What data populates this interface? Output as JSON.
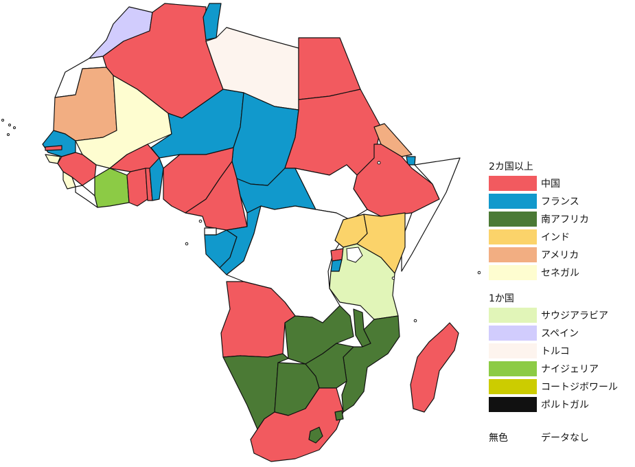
{
  "colors": {
    "china": "#f25a5f",
    "france": "#1199cc",
    "south_africa": "#4b7a35",
    "india": "#fbd36a",
    "usa": "#f2ae82",
    "senegal": "#fefdd0",
    "saudi": "#e1f5b8",
    "spain": "#d1ccfd",
    "turkey": "#fdf4ee",
    "nigeria": "#8ccb45",
    "cote": "#cccc00",
    "portugal": "#111111",
    "none": "#ffffff"
  },
  "legend": {
    "group1": {
      "title": "2カ国以上",
      "items": [
        {
          "key": "china",
          "label": "中国"
        },
        {
          "key": "france",
          "label": "フランス"
        },
        {
          "key": "south_africa",
          "label": "南アフリカ"
        },
        {
          "key": "india",
          "label": "インド"
        },
        {
          "key": "usa",
          "label": "アメリカ"
        },
        {
          "key": "senegal",
          "label": "セネガル"
        }
      ]
    },
    "group2": {
      "title": "1か国",
      "items": [
        {
          "key": "saudi",
          "label": "サウジアラビア"
        },
        {
          "key": "spain",
          "label": "スペイン"
        },
        {
          "key": "turkey",
          "label": "トルコ"
        },
        {
          "key": "nigeria",
          "label": "ナイジェリア"
        },
        {
          "key": "cote",
          "label": "コートジボワール"
        },
        {
          "key": "portugal",
          "label": "ポルトガル"
        }
      ]
    },
    "nodata": {
      "swatch_label": "無色",
      "label": "データなし"
    }
  }
}
